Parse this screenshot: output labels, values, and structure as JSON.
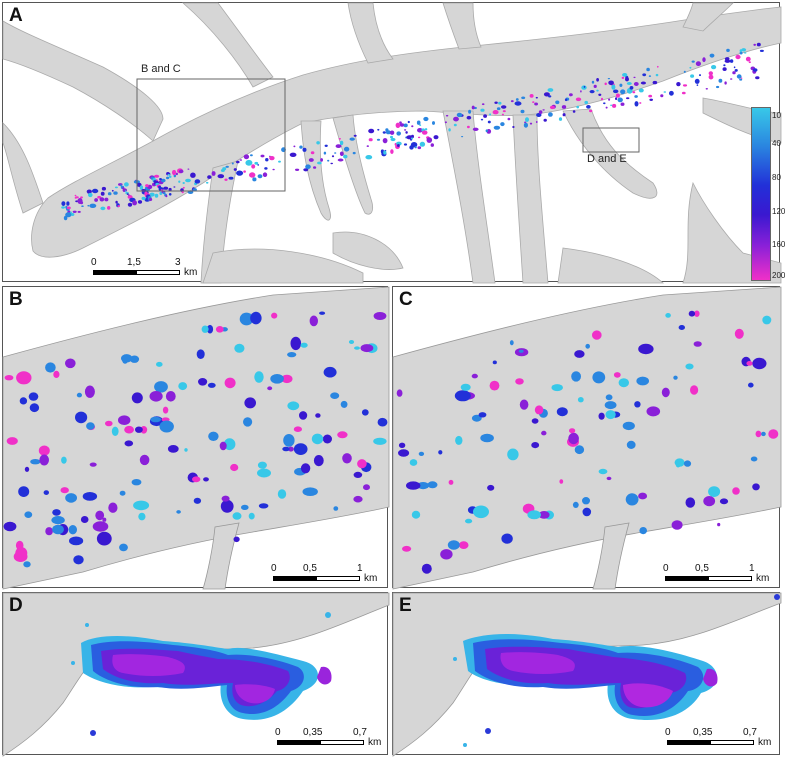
{
  "panels": {
    "A": {
      "label": "A",
      "annotation_bc": "B and C",
      "annotation_de": "D and E",
      "scale": {
        "ticks": [
          "0",
          "1,5",
          "3"
        ],
        "unit": "km"
      }
    },
    "B": {
      "label": "B",
      "scale": {
        "ticks": [
          "0",
          "0,5",
          "1"
        ],
        "unit": "km"
      }
    },
    "C": {
      "label": "C",
      "scale": {
        "ticks": [
          "0",
          "0,5",
          "1"
        ],
        "unit": "km"
      }
    },
    "D": {
      "label": "D",
      "scale": {
        "ticks": [
          "0",
          "0,35",
          "0,7"
        ],
        "unit": "km"
      }
    },
    "E": {
      "label": "E",
      "scale": {
        "ticks": [
          "0",
          "0,35",
          "0,7"
        ],
        "unit": "km"
      }
    }
  },
  "legend": {
    "labels": [
      "10",
      "40",
      "80",
      "120",
      "160",
      "200"
    ],
    "ramp_colors": [
      "#38c8e8",
      "#2a86e0",
      "#2230d8",
      "#3a18d0",
      "#8a20d8",
      "#f030c8"
    ]
  },
  "colors": {
    "land": "#d6d6d6",
    "water": "#ffffff",
    "outline": "#999999",
    "frame": "#555555"
  }
}
